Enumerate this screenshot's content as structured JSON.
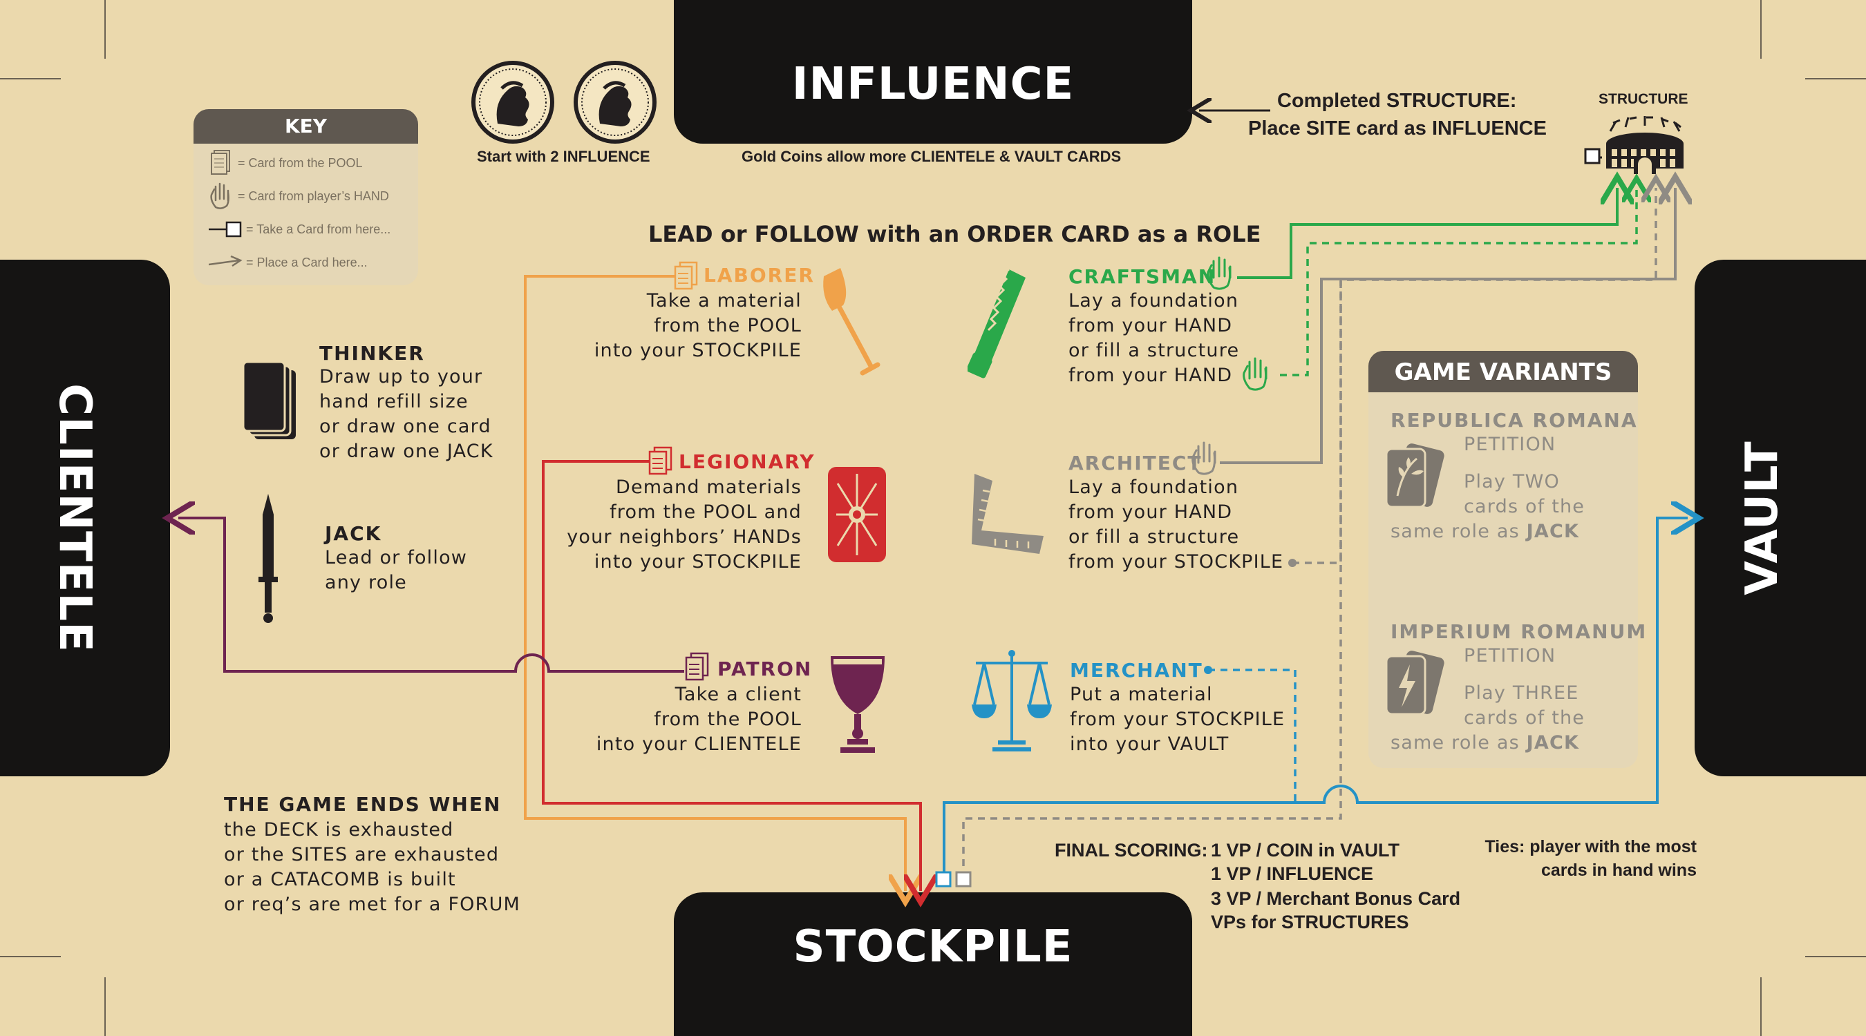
{
  "zones": {
    "influence": "INFLUENCE",
    "stockpile": "STOCKPILE",
    "clientele": "CLIENTELE",
    "vault": "VAULT"
  },
  "coins_caption": "Start with 2 INFLUENCE",
  "gold_caption": "Gold Coins allow more CLIENTELE & VAULT CARDS",
  "structure": {
    "note_line1": "Completed STRUCTURE:",
    "note_line2": "Place SITE card as INFLUENCE",
    "label": "STRUCTURE"
  },
  "key": {
    "title": "KEY",
    "items": [
      {
        "icon": "card-stack-icon",
        "label": "= Card from the POOL"
      },
      {
        "icon": "hand-icon",
        "label": "= Card from player’s HAND"
      },
      {
        "icon": "take-card-icon",
        "label": "= Take a Card from here..."
      },
      {
        "icon": "place-arrow-icon",
        "label": "= Place a Card here..."
      }
    ]
  },
  "lead_title": "LEAD or FOLLOW with an ORDER CARD as a ROLE",
  "thinker": {
    "name": "THINKER",
    "desc": "Draw up to your\nhand refill size\nor draw one card\nor draw one JACK"
  },
  "jack": {
    "name": "JACK",
    "desc": "Lead or follow\nany role"
  },
  "roles": {
    "laborer": {
      "name": "LABORER",
      "desc": "Take a material\nfrom the POOL\ninto your STOCKPILE",
      "color": "#f0a24a"
    },
    "legionary": {
      "name": "LEGIONARY",
      "desc": "Demand materials\nfrom the POOL and\nyour neighbors’ HANDs\ninto your STOCKPILE",
      "color": "#d12d2f"
    },
    "patron": {
      "name": "PATRON",
      "desc": "Take a client\nfrom the POOL\ninto your CLIENTELE",
      "color": "#6e2450"
    },
    "craftsman": {
      "name": "CRAFTSMAN",
      "desc": "Lay a foundation\nfrom your HAND\nor fill a structure\nfrom your HAND",
      "color": "#2aa84a"
    },
    "architect": {
      "name": "ARCHITECT",
      "desc": "Lay a foundation\nfrom your HAND\nor fill a structure\nfrom your STOCKPILE",
      "color": "#8f8b84"
    },
    "merchant": {
      "name": "MERCHANT",
      "desc": "Put a material\nfrom your STOCKPILE\ninto your VAULT",
      "color": "#2492c6"
    }
  },
  "variants": {
    "title": "GAME VARIANTS",
    "republica": {
      "name": "REPUBLICA ROMANA",
      "sub": "PETITION",
      "l1": "Play TWO",
      "l2": "cards of the",
      "l3a": "same role as ",
      "l3b": "JACK"
    },
    "imperium": {
      "name": "IMPERIUM ROMANUM",
      "sub": "PETITION",
      "l1": "Play THREE",
      "l2": "cards of the",
      "l3a": "same role as ",
      "l3b": "JACK"
    }
  },
  "game_ends": {
    "title": "THE GAME ENDS WHEN",
    "lines": "the DECK is exhausted\nor the SITES are exhausted\nor a CATACOMB is built\nor req’s are met for a FORUM"
  },
  "scoring": {
    "label": "FINAL SCORING:",
    "items": [
      "1 VP / COIN in VAULT",
      "1 VP / INFLUENCE",
      "3 VP / Merchant Bonus Card",
      "VPs for STRUCTURES"
    ]
  },
  "ties": {
    "line1": "Ties: player with the most",
    "line2": "cards in hand wins"
  },
  "colors": {
    "background": "#ebd9ad",
    "zone": "#151413",
    "variant_panel": "#e5d7b6",
    "variant_header": "#5f5850"
  }
}
